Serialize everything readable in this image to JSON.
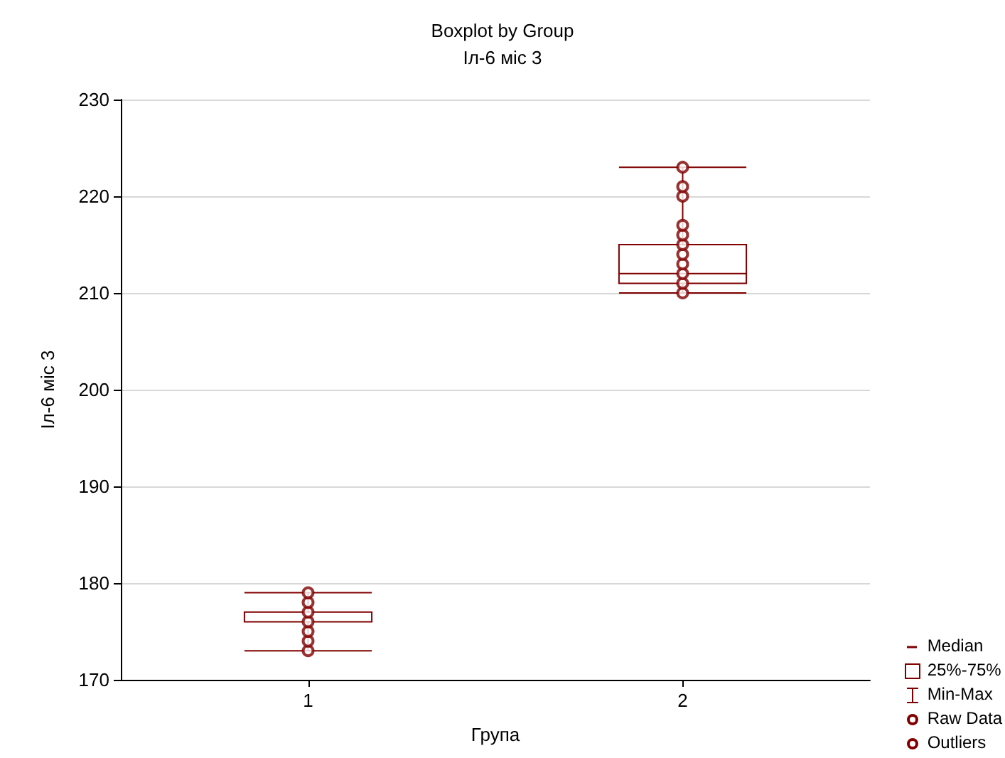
{
  "chart_data": {
    "type": "box",
    "title": "Boxplot by Group",
    "subtitle": "Іл-6 міс 3",
    "xlabel": "Група",
    "ylabel": "Іл-6 міс 3",
    "categories": [
      "1",
      "2"
    ],
    "ylim": [
      170,
      230
    ],
    "yticks": [
      170,
      180,
      190,
      200,
      210,
      220,
      230
    ],
    "grid": "y",
    "legend": "bottom right",
    "annotations": [
      "Median",
      "Min-Max",
      "Outliers"
    ],
    "series": [
      {
        "name": "25%-75%",
        "color": "#800000",
        "boxes": [
          {
            "low": 173,
            "q1": 176,
            "median": 176,
            "q3": 177,
            "high": 179
          },
          {
            "low": 210,
            "q1": 211,
            "median": 212,
            "q3": 215,
            "high": 223
          }
        ]
      },
      {
        "name": "Raw Data",
        "type": "scatter",
        "color": "#800000",
        "marker": "circle",
        "x": [
          "1",
          "1",
          "1",
          "1",
          "1",
          "1",
          "1",
          "2",
          "2",
          "2",
          "2",
          "2",
          "2",
          "2",
          "2",
          "2",
          "2",
          "2"
        ],
        "values": [
          173,
          174,
          175,
          176,
          177,
          178,
          179,
          210,
          211,
          212,
          213,
          214,
          215,
          216,
          217,
          220,
          221,
          223
        ]
      }
    ]
  }
}
